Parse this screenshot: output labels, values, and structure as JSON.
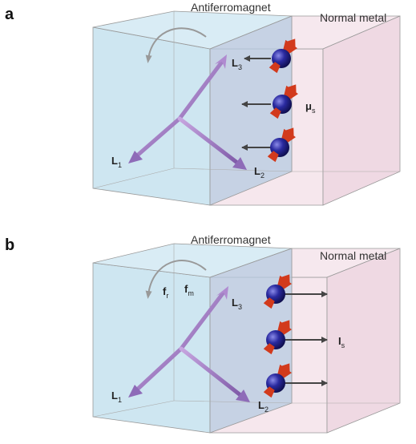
{
  "panels": [
    {
      "letter": "a",
      "antiferromagnet_label": "Antiferromagnet",
      "normal_metal_label": "Normal metal",
      "vectors": [
        {
          "symbol": "L",
          "subscript": "3"
        },
        {
          "symbol": "L",
          "subscript": "1"
        },
        {
          "symbol": "L",
          "subscript": "2"
        }
      ],
      "spin_quantity": {
        "symbol": "μ",
        "subscript": "s"
      },
      "arrow_direction": "into-antiferromagnet",
      "torques": []
    },
    {
      "letter": "b",
      "antiferromagnet_label": "Antiferromagnet",
      "normal_metal_label": "Normal metal",
      "vectors": [
        {
          "symbol": "L",
          "subscript": "3"
        },
        {
          "symbol": "L",
          "subscript": "1"
        },
        {
          "symbol": "L",
          "subscript": "2"
        }
      ],
      "spin_quantity": {
        "symbol": "I",
        "subscript": "s"
      },
      "arrow_direction": "into-normal-metal",
      "torques": [
        {
          "symbol": "f",
          "subscript": "r"
        },
        {
          "symbol": "f",
          "subscript": "m"
        }
      ]
    }
  ],
  "colors": {
    "antiferromagnet_fill": "#c9e3f0",
    "normal_metal_fill": "#f4e3ea",
    "vector": "#a884c4",
    "electron": "#2a2aa0",
    "spin_arrow": "#d23a1c",
    "flow_arrow": "#444444"
  },
  "icons": {
    "electron": "electron-sphere-icon",
    "spin": "spin-arrow-icon",
    "rotation": "curved-rotation-arrow-icon"
  }
}
